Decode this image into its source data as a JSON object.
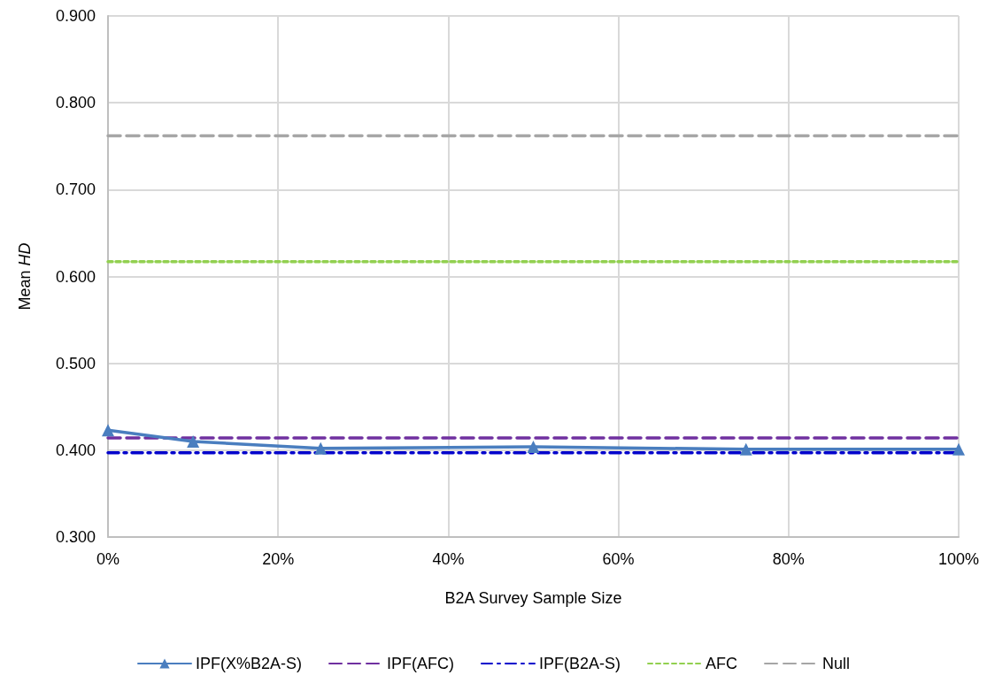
{
  "chart_data": {
    "type": "line",
    "xlabel": "B2A Survey Sample Size",
    "ylabel": "Mean $_{}$HD",
    "x": [
      0,
      10,
      25,
      50,
      75,
      100
    ],
    "series": [
      {
        "name": "IPF(X%B2A-S)",
        "color": "#4a7ebf",
        "values": [
          0.423,
          0.41,
          0.402,
          0.404,
          0.401,
          0.401
        ],
        "marker": "triangle",
        "line_style": "solid"
      },
      {
        "name": "IPF(AFC)",
        "color": "#7030a0",
        "values": [
          0.414,
          0.414,
          0.414,
          0.414,
          0.414,
          0.414
        ],
        "marker": "none",
        "line_style": "dashed"
      },
      {
        "name": "IPF(B2A-S)",
        "color": "#0000cc",
        "values": [
          0.397,
          0.397,
          0.397,
          0.397,
          0.397,
          0.397
        ],
        "marker": "none",
        "line_style": "dashdot"
      },
      {
        "name": "AFC",
        "color": "#92d050",
        "values": [
          0.617,
          0.617,
          0.617,
          0.617,
          0.617,
          0.617
        ],
        "marker": "none",
        "line_style": "dotted"
      },
      {
        "name": "Null",
        "color": "#a6a6a6",
        "values": [
          0.762,
          0.762,
          0.762,
          0.762,
          0.762,
          0.762
        ],
        "marker": "none",
        "line_style": "dashed"
      }
    ],
    "xlim": [
      0,
      100
    ],
    "xticks": [
      {
        "value": 0,
        "label": "0%"
      },
      {
        "value": 20,
        "label": "20%"
      },
      {
        "value": 40,
        "label": "40%"
      },
      {
        "value": 60,
        "label": "60%"
      },
      {
        "value": 80,
        "label": "80%"
      },
      {
        "value": 100,
        "label": "100%"
      }
    ],
    "ylim": [
      0.3,
      0.9
    ],
    "yticks": [
      {
        "value": 0.3,
        "label": "0.300"
      },
      {
        "value": 0.4,
        "label": "0.400"
      },
      {
        "value": 0.5,
        "label": "0.500"
      },
      {
        "value": 0.6,
        "label": "0.600"
      },
      {
        "value": 0.7,
        "label": "0.700"
      },
      {
        "value": 0.8,
        "label": "0.800"
      },
      {
        "value": 0.9,
        "label": "0.900"
      }
    ],
    "grid": true,
    "legend": "bottom"
  }
}
